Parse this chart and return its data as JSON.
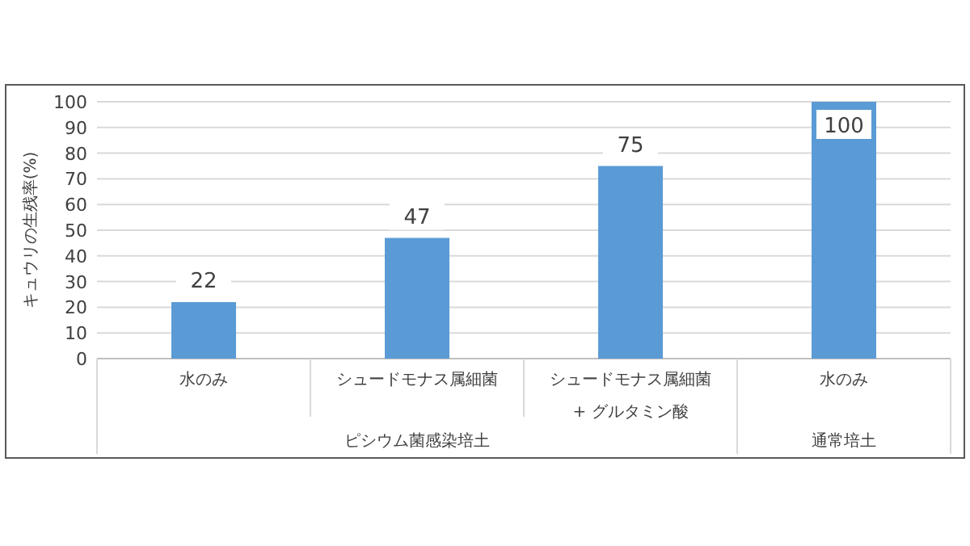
{
  "chart_data": {
    "type": "bar",
    "ylabel": "キュウリの生残率(%)",
    "categories": [
      "水のみ",
      "シュードモナス属細菌",
      "シュードモナス属細菌 + グルタミン酸",
      "水のみ"
    ],
    "values": [
      22,
      47,
      75,
      100
    ],
    "color": "#5b9bd5",
    "ylim": [
      0,
      100
    ],
    "yticks": [
      0,
      10,
      20,
      30,
      40,
      50,
      60,
      70,
      80,
      90,
      100
    ],
    "grid": "y",
    "data_labels": true,
    "annotations": [
      "ピシウム菌感染培土",
      "通常培土"
    ]
  }
}
